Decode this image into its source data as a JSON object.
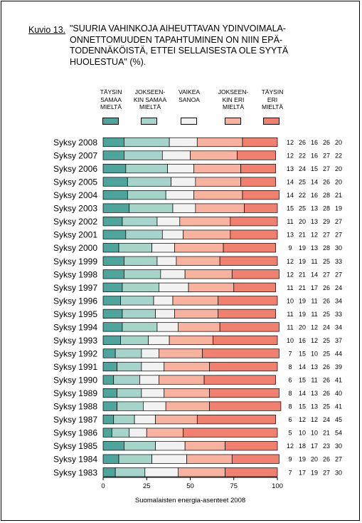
{
  "header": {
    "figure_label": "Kuvio 13.",
    "title": "\"SUURIA VAHINKOJA AIHEUTTAVAN YDINVOIMALA-\nONNETTOMUUDEN TAPAHTUMINEN ON NIIN EPÄ-\nTODENNÄKÖISTÄ, ETTEI SELLAISESTA OLE SYYTÄ\nHUOLESTUA\" (%)."
  },
  "legend": [
    {
      "label": "TÄYSIN\nSAMAA\nMIELTÄ",
      "color": "#4fa59b"
    },
    {
      "label": "JOKSEEN-\nKIN SAMAA\nMIELTÄ",
      "color": "#a6d4cb"
    },
    {
      "label": "VAIKEA\nSANOA",
      "color": "#f2f2f2"
    },
    {
      "label": "JOKSEEN-\nKIN ERI\nMIELTÄ",
      "color": "#f7b2a0"
    },
    {
      "label": "TÄYSIN\nERI\nMIELTÄ",
      "color": "#f08070"
    }
  ],
  "caption": "Suomalaisten energia-asenteet 2008",
  "chart_data": {
    "type": "bar",
    "orientation": "horizontal",
    "stacked": true,
    "xlim": [
      0,
      100
    ],
    "xticks": [
      0,
      25,
      50,
      75,
      100
    ],
    "categories": [
      "Syksy 2008",
      "Syksy 2007",
      "Syksy 2006",
      "Syksy 2005",
      "Syksy 2004",
      "Syksy 2003",
      "Syksy 2002",
      "Syksy 2001",
      "Syksy 2000",
      "Syksy 1999",
      "Syksy 1998",
      "Syksy 1997",
      "Syksy 1996",
      "Syksy 1995",
      "Syksy 1994",
      "Syksy 1993",
      "Syksy 1992",
      "Syksy 1991",
      "Syksy 1990",
      "Syksy 1989",
      "Syksy 1988",
      "Syksy 1987",
      "Syksy 1986",
      "Syksy 1985",
      "Syksy 1984",
      "Syksy 1983"
    ],
    "series": [
      {
        "name": "TÄYSIN SAMAA MIELTÄ",
        "color": "#4fa59b",
        "values": [
          12,
          12,
          13,
          14,
          14,
          15,
          11,
          13,
          9,
          12,
          12,
          11,
          10,
          11,
          11,
          10,
          7,
          8,
          6,
          8,
          8,
          6,
          5,
          12,
          9,
          7
        ]
      },
      {
        "name": "JOKSEENKIN SAMAA MIELTÄ",
        "color": "#a6d4cb",
        "values": [
          26,
          22,
          24,
          25,
          22,
          25,
          20,
          21,
          19,
          19,
          21,
          21,
          19,
          19,
          20,
          16,
          15,
          14,
          15,
          14,
          15,
          12,
          10,
          18,
          19,
          17
        ]
      },
      {
        "name": "VAIKEA SANOA",
        "color": "#f2f2f2",
        "values": [
          16,
          16,
          15,
          14,
          16,
          13,
          13,
          12,
          13,
          11,
          14,
          17,
          11,
          11,
          12,
          12,
          10,
          13,
          11,
          13,
          13,
          12,
          10,
          17,
          20,
          19
        ]
      },
      {
        "name": "JOKSEENKIN ERI MIELTÄ",
        "color": "#f7b2a0",
        "values": [
          26,
          27,
          27,
          26,
          28,
          28,
          29,
          27,
          28,
          25,
          27,
          26,
          26,
          25,
          24,
          25,
          25,
          26,
          26,
          26,
          25,
          24,
          21,
          23,
          26,
          27
        ]
      },
      {
        "name": "TÄYSIN ERI MIELTÄ",
        "color": "#f08070",
        "values": [
          20,
          22,
          20,
          20,
          21,
          19,
          27,
          27,
          30,
          33,
          27,
          24,
          34,
          33,
          34,
          37,
          44,
          39,
          41,
          40,
          41,
          45,
          54,
          30,
          27,
          30
        ]
      }
    ]
  }
}
